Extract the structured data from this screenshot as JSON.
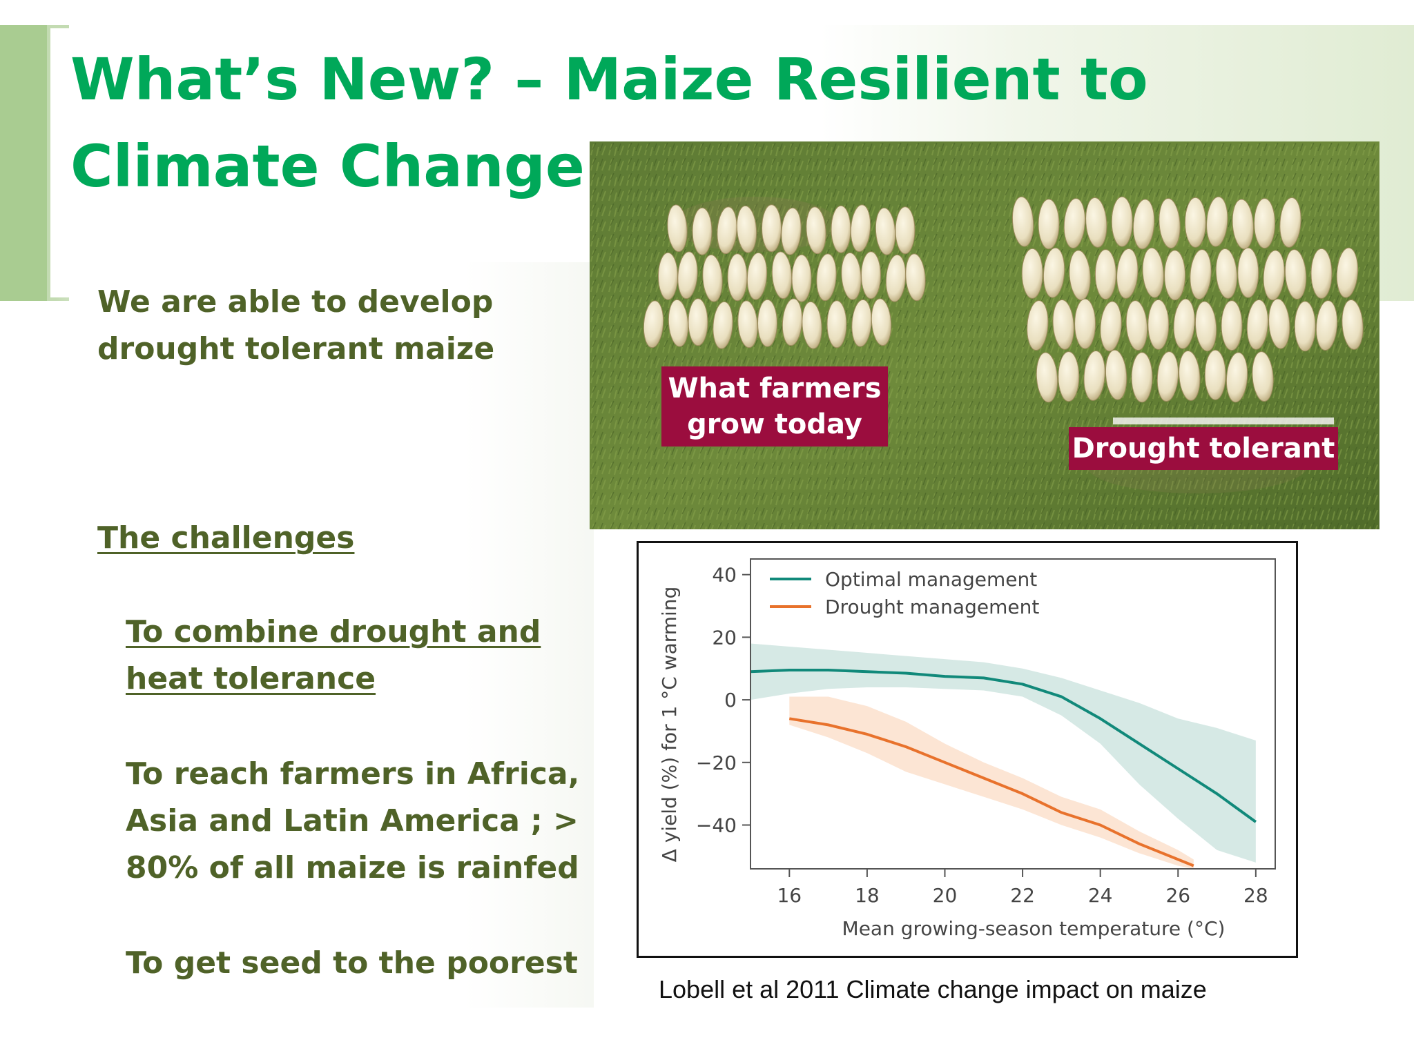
{
  "slide": {
    "title": "What’s New? – Maize Resilient to Climate Change",
    "intro": [
      "We are able to develop",
      "drought tolerant maize"
    ],
    "challenges_heading": "The challenges",
    "challenge_1": [
      "To combine drought and",
      "heat tolerance"
    ],
    "challenge_2": [
      "To reach farmers in Africa,",
      "Asia and  Latin America ; >",
      "80% of all maize is rainfed"
    ],
    "challenge_3": "To get seed to the poorest"
  },
  "photo": {
    "label_left": [
      "What farmers",
      "grow today"
    ],
    "label_right": "Drought tolerant",
    "label_color": "#9b0d3e"
  },
  "chart_data": {
    "type": "line",
    "xlabel": "Mean growing-season temperature (°C)",
    "ylabel": "Δ yield (%) for 1 °C warming",
    "xlim": [
      15,
      28.5
    ],
    "ylim": [
      -54,
      45
    ],
    "xticks": [
      16,
      18,
      20,
      22,
      24,
      26,
      28
    ],
    "yticks": [
      40,
      20,
      0,
      -20,
      -40
    ],
    "legend": "top-left",
    "series": [
      {
        "name": "Optimal management",
        "color": "#11897a",
        "band_color": "#cfe5e1",
        "x": [
          15,
          16,
          17,
          18,
          19,
          20,
          21,
          22,
          23,
          24,
          25,
          26,
          27,
          28
        ],
        "y": [
          9,
          9.5,
          9.5,
          9,
          8.5,
          7.5,
          7,
          5,
          1,
          -6,
          -14,
          -22,
          -30,
          -39
        ],
        "upper": [
          18,
          17,
          16,
          15,
          14,
          13,
          12,
          10,
          7,
          3,
          -1,
          -6,
          -9,
          -13
        ],
        "lower": [
          0,
          2,
          3.5,
          4,
          4,
          3.5,
          3,
          1,
          -5,
          -14,
          -27,
          -38,
          -48,
          -52
        ]
      },
      {
        "name": "Drought management",
        "color": "#e8722c",
        "band_color": "#fbe0cd",
        "x": [
          16,
          17,
          18,
          19,
          20,
          21,
          22,
          23,
          24,
          25,
          26,
          26.4
        ],
        "y": [
          -6,
          -8,
          -11,
          -15,
          -20,
          -25,
          -30,
          -36,
          -40,
          -46,
          -51,
          -53
        ],
        "upper": [
          1,
          1,
          -2,
          -7,
          -14,
          -20,
          -25,
          -31,
          -35,
          -42,
          -48,
          -51
        ],
        "lower": [
          -8,
          -12,
          -17,
          -23,
          -27,
          -31,
          -35,
          -40,
          -44,
          -49,
          -53,
          -54
        ]
      }
    ]
  },
  "caption": "Lobell et al 2011 Climate change impact on maize"
}
